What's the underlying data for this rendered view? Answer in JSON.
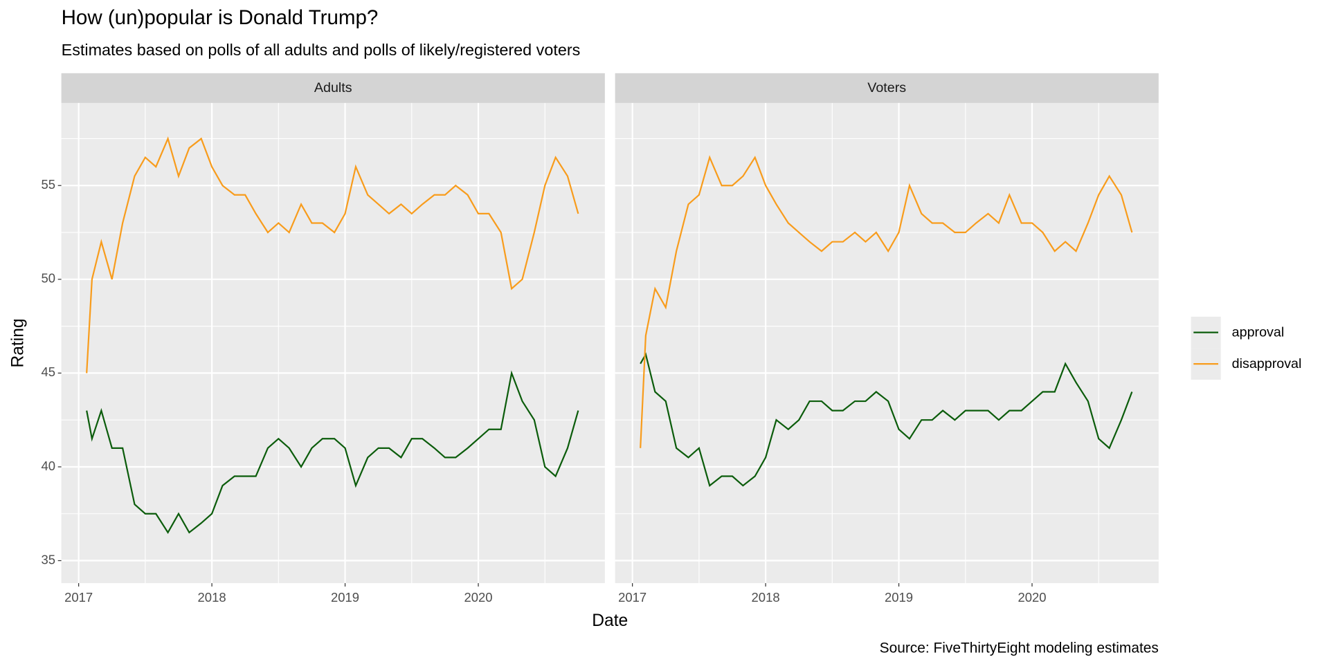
{
  "chart_data": {
    "type": "line",
    "title": "How (un)popular is Donald Trump?",
    "subtitle": "Estimates based on polls of all adults and polls of likely/registered voters",
    "x_label": "Date",
    "y_label": "Rating",
    "source": "Source: FiveThirtyEight modeling estimates",
    "xlim": [
      2016.87,
      2020.95
    ],
    "xticks": [
      2017,
      2018,
      2019,
      2020
    ],
    "ylim": [
      33.8,
      59.4
    ],
    "yticks": [
      35,
      40,
      45,
      50,
      55
    ],
    "grid": true,
    "legend": "right",
    "x": [
      2017.06,
      2017.1,
      2017.17,
      2017.25,
      2017.33,
      2017.42,
      2017.5,
      2017.58,
      2017.67,
      2017.75,
      2017.83,
      2017.92,
      2018.0,
      2018.08,
      2018.17,
      2018.25,
      2018.33,
      2018.42,
      2018.5,
      2018.58,
      2018.67,
      2018.75,
      2018.83,
      2018.92,
      2019.0,
      2019.08,
      2019.17,
      2019.25,
      2019.33,
      2019.42,
      2019.5,
      2019.58,
      2019.67,
      2019.75,
      2019.83,
      2019.92,
      2020.0,
      2020.08,
      2020.17,
      2020.25,
      2020.33,
      2020.42,
      2020.5,
      2020.58,
      2020.67,
      2020.75
    ],
    "panels": [
      {
        "title": "Adults",
        "series": [
          {
            "name": "approval",
            "color": "#0b5c0b",
            "values": [
              43,
              41.5,
              43,
              41,
              41,
              38,
              37.5,
              37.5,
              36.5,
              37.5,
              36.5,
              37,
              37.5,
              39,
              39.5,
              39.5,
              39.5,
              41,
              41.5,
              41,
              40,
              41,
              41.5,
              41.5,
              41,
              39,
              40.5,
              41,
              41,
              40.5,
              41.5,
              41.5,
              41,
              40.5,
              40.5,
              41,
              41.5,
              42,
              42,
              45,
              43.5,
              42.5,
              40,
              39.5,
              41,
              43
            ]
          },
          {
            "name": "disapproval",
            "color": "#f89c1c",
            "values": [
              45,
              50,
              52,
              50,
              53,
              55.5,
              56.5,
              56,
              57.5,
              55.5,
              57,
              57.5,
              56,
              55,
              54.5,
              54.5,
              53.5,
              52.5,
              53,
              52.5,
              54,
              53,
              53,
              52.5,
              53.5,
              56,
              54.5,
              54,
              53.5,
              54,
              53.5,
              54,
              54.5,
              54.5,
              55,
              54.5,
              53.5,
              53.5,
              52.5,
              49.5,
              50,
              52.5,
              55,
              56.5,
              55.5,
              53.5
            ]
          }
        ]
      },
      {
        "title": "Voters",
        "series": [
          {
            "name": "approval",
            "color": "#0b5c0b",
            "values": [
              45.5,
              46,
              44,
              43.5,
              41,
              40.5,
              41,
              39,
              39.5,
              39.5,
              39,
              39.5,
              40.5,
              42.5,
              42,
              42.5,
              43.5,
              43.5,
              43,
              43,
              43.5,
              43.5,
              44,
              43.5,
              42,
              41.5,
              42.5,
              42.5,
              43,
              42.5,
              43,
              43,
              43,
              42.5,
              43,
              43,
              43.5,
              44,
              44,
              45.5,
              44.5,
              43.5,
              41.5,
              41,
              42.5,
              44
            ]
          },
          {
            "name": "disapproval",
            "color": "#f89c1c",
            "values": [
              41,
              47,
              49.5,
              48.5,
              51.5,
              54,
              54.5,
              56.5,
              55,
              55,
              55.5,
              56.5,
              55,
              54,
              53,
              52.5,
              52,
              51.5,
              52,
              52,
              52.5,
              52,
              52.5,
              51.5,
              52.5,
              55,
              53.5,
              53,
              53,
              52.5,
              52.5,
              53,
              53.5,
              53,
              54.5,
              53,
              53,
              52.5,
              51.5,
              52,
              51.5,
              53,
              54.5,
              55.5,
              54.5,
              52.5
            ]
          }
        ]
      }
    ]
  }
}
